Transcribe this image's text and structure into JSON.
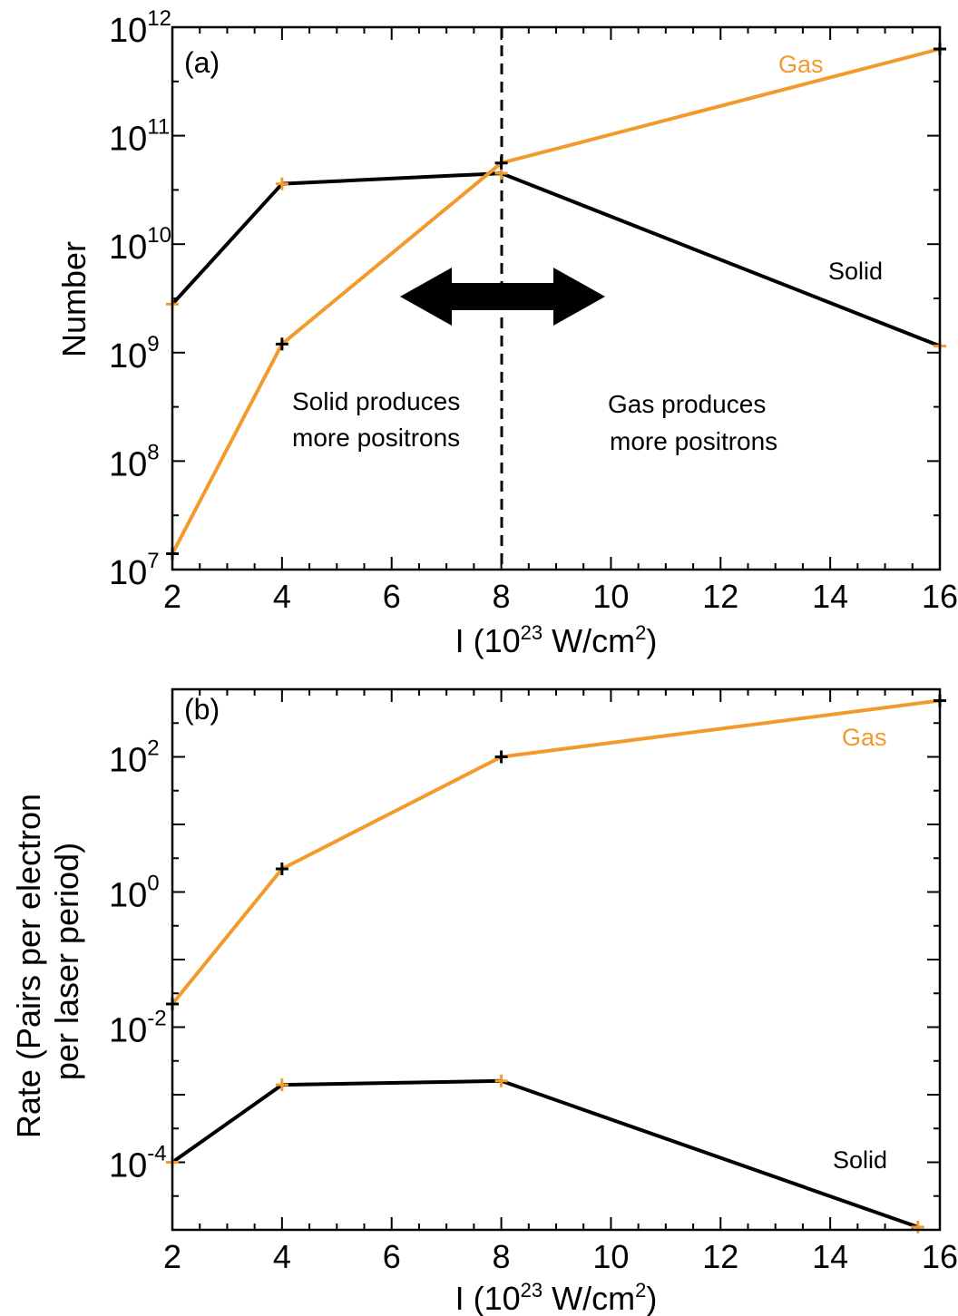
{
  "colors": {
    "gas": "#f39a2c",
    "solid": "#000000",
    "axis": "#000000"
  },
  "chart_data": [
    {
      "id": "a",
      "type": "line",
      "panel_label": "(a)",
      "xlabel": "I (10",
      "xlabel_sup": "23",
      "xlabel_tail": " W/cm",
      "xlabel_sup2": "2",
      "xlabel_end": ")",
      "ylabel": "Number",
      "xlim": [
        2,
        16
      ],
      "ylim_log10": [
        7,
        12
      ],
      "xticks": [
        "2",
        "4",
        "6",
        "8",
        "10",
        "12",
        "14",
        "16"
      ],
      "yticks": [
        {
          "base": "10",
          "exp": "7",
          "v": 7
        },
        {
          "base": "10",
          "exp": "8",
          "v": 8
        },
        {
          "base": "10",
          "exp": "9",
          "v": 9
        },
        {
          "base": "10",
          "exp": "10",
          "v": 10
        },
        {
          "base": "10",
          "exp": "11",
          "v": 11
        },
        {
          "base": "10",
          "exp": "12",
          "v": 12
        }
      ],
      "series": [
        {
          "name": "Solid",
          "x": [
            2,
            4,
            8,
            16
          ],
          "y": [
            2800000000.0,
            36000000000.0,
            45000000000.0,
            1150000000.0
          ]
        },
        {
          "name": "Gas",
          "x": [
            2,
            4,
            8,
            16
          ],
          "y": [
            14000000.0,
            1200000000.0,
            56000000000.0,
            630000000000.0
          ]
        }
      ],
      "labels": {
        "gas": "Gas",
        "solid": "Solid"
      },
      "vline_x": 8,
      "annotations": {
        "left_line1": "Solid produces",
        "left_line2": "more positrons",
        "right_line1": "Gas produces",
        "right_line2": "more positrons"
      }
    },
    {
      "id": "b",
      "type": "line",
      "panel_label": "(b)",
      "xlabel": "I (10",
      "xlabel_sup": "23",
      "xlabel_tail": " W/cm",
      "xlabel_sup2": "2",
      "xlabel_end": ")",
      "ylabel_line1": "Rate (Pairs per electron",
      "ylabel_line2": "per laser period)",
      "xlim": [
        2,
        16
      ],
      "ylim_log10": [
        -5,
        3
      ],
      "xticks": [
        "2",
        "4",
        "6",
        "8",
        "10",
        "12",
        "14",
        "16"
      ],
      "yticks": [
        {
          "base": "10",
          "exp": "-4",
          "v": -4
        },
        {
          "base": "10",
          "exp": "-2",
          "v": -2
        },
        {
          "base": "10",
          "exp": "0",
          "v": 0
        },
        {
          "base": "10",
          "exp": "2",
          "v": 2
        }
      ],
      "series": [
        {
          "name": "Solid",
          "x": [
            2,
            4,
            8,
            15.6
          ],
          "y": [
            0.0001,
            0.0014,
            0.0016,
            1.1e-05
          ]
        },
        {
          "name": "Gas",
          "x": [
            2,
            4,
            8,
            16
          ],
          "y": [
            0.022,
            2.2,
            100,
            680
          ]
        }
      ],
      "labels": {
        "gas": "Gas",
        "solid": "Solid"
      }
    }
  ]
}
